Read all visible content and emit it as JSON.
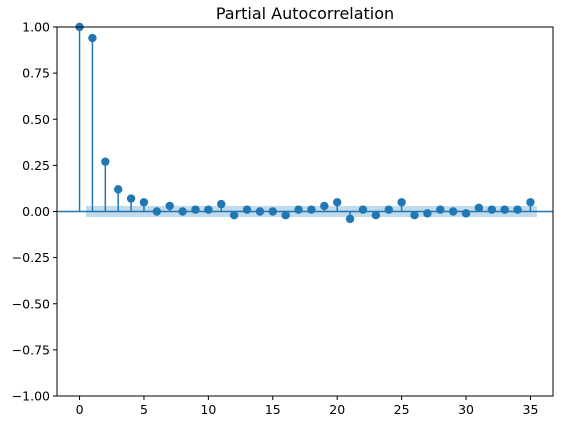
{
  "chart_data": {
    "type": "stem",
    "title": "Partial Autocorrelation",
    "xlabel": "",
    "ylabel": "",
    "xlim": [
      -1.75,
      36.75
    ],
    "ylim": [
      -1.0,
      1.0
    ],
    "xticks": [
      0,
      5,
      10,
      15,
      20,
      25,
      30,
      35
    ],
    "yticks": [
      -1.0,
      -0.75,
      -0.5,
      -0.25,
      0.0,
      0.25,
      0.5,
      0.75,
      1.0
    ],
    "xtick_labels": [
      "0",
      "5",
      "10",
      "15",
      "20",
      "25",
      "30",
      "35"
    ],
    "ytick_labels": [
      "−1.00",
      "−0.75",
      "−0.50",
      "−0.25",
      "0.00",
      "0.25",
      "0.50",
      "0.75",
      "1.00"
    ],
    "confidence_band": {
      "from_lag": 0.5,
      "to_lag": 35.5,
      "lower": -0.03,
      "upper": 0.03
    },
    "lags": [
      0,
      1,
      2,
      3,
      4,
      5,
      6,
      7,
      8,
      9,
      10,
      11,
      12,
      13,
      14,
      15,
      16,
      17,
      18,
      19,
      20,
      21,
      22,
      23,
      24,
      25,
      26,
      27,
      28,
      29,
      30,
      31,
      32,
      33,
      34,
      35
    ],
    "values": [
      1.0,
      0.94,
      0.27,
      0.12,
      0.07,
      0.05,
      0.0,
      0.03,
      0.0,
      0.01,
      0.01,
      0.04,
      -0.02,
      0.01,
      0.0,
      0.0,
      -0.02,
      0.01,
      0.01,
      0.03,
      0.05,
      -0.04,
      0.01,
      -0.02,
      0.01,
      0.05,
      -0.02,
      -0.01,
      0.01,
      0.0,
      -0.01,
      0.02,
      0.01,
      0.01,
      0.01,
      0.05
    ],
    "grid": false,
    "colors": {
      "series": "#1f77b4",
      "band": "#bcd5ea",
      "axes": "#000000"
    }
  }
}
